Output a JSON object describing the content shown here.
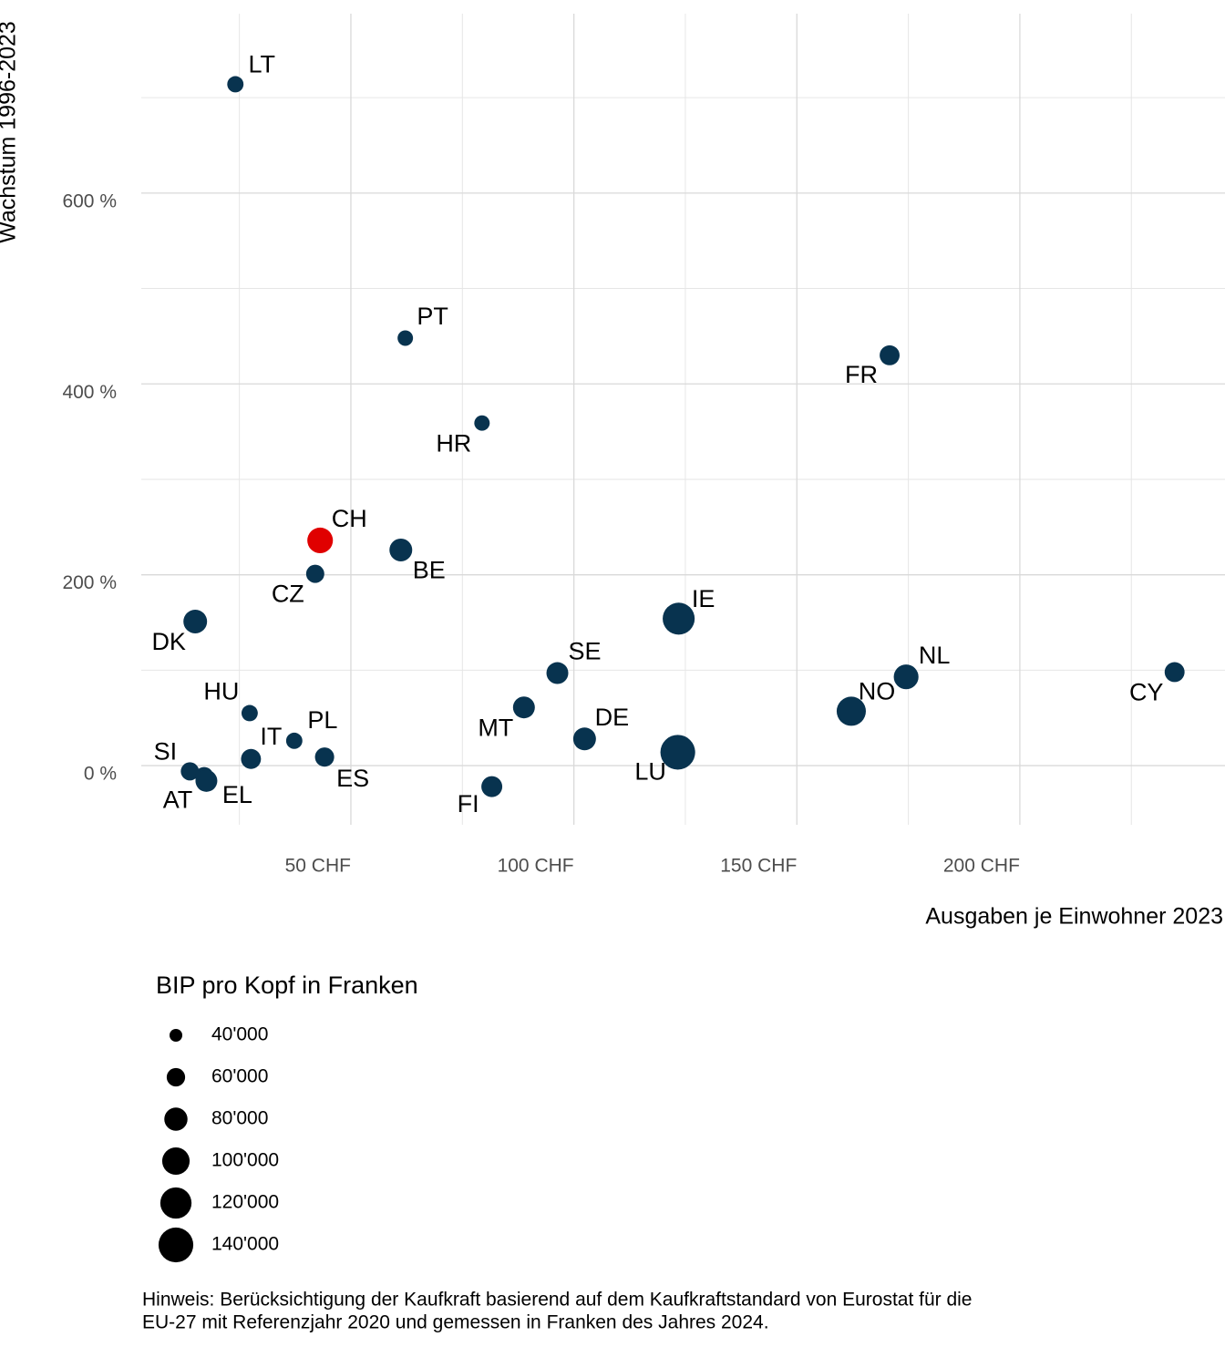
{
  "chart_data": {
    "type": "scatter",
    "x_label": "Ausgaben je Einwohner 2023",
    "y_label": "Wachstum 1996-2023",
    "size_legend_title": "BIP pro Kopf in Franken",
    "note": [
      "Hinweis: Berücksichtigung der Kaufkraft basierend auf dem Kaufkraftstandard von Eurostat für die",
      "EU-27 mit Referenzjahr 2020 und gemessen in Franken des Jahres 2024."
    ],
    "labels": [
      "LT",
      "PT",
      "FR",
      "HR",
      "CH",
      "BE",
      "CZ",
      "DK",
      "IE",
      "SE",
      "NL",
      "CY",
      "NO",
      "MT",
      "DE",
      "LU",
      "HU",
      "PL",
      "IT",
      "ES",
      "SI",
      "AT",
      "EL",
      "FI"
    ],
    "x": [
      24.1,
      62.2,
      170.8,
      79.4,
      43.1,
      61.2,
      42.0,
      15.1,
      123.5,
      96.3,
      174.5,
      234.7,
      162.2,
      88.8,
      102.4,
      123.3,
      27.3,
      37.3,
      27.6,
      44.1,
      13.9,
      17.1,
      17.6,
      81.6
    ],
    "y": [
      714,
      448,
      430,
      359,
      236,
      226,
      201,
      151,
      154,
      97,
      93,
      98,
      57,
      61,
      28,
      14,
      55,
      26,
      7,
      9,
      -6,
      -11,
      -16,
      -22
    ],
    "size": [
      52000,
      49000,
      66000,
      49000,
      91000,
      78000,
      59000,
      82000,
      124000,
      74000,
      87000,
      66000,
      109000,
      74000,
      78000,
      140000,
      52000,
      52000,
      66000,
      63000,
      59000,
      59000,
      74000,
      70000
    ],
    "colors": [
      "#08334f",
      "#08334f",
      "#08334f",
      "#08334f",
      "#e00000",
      "#08334f",
      "#08334f",
      "#08334f",
      "#08334f",
      "#08334f",
      "#08334f",
      "#08334f",
      "#08334f",
      "#08334f",
      "#08334f",
      "#08334f",
      "#08334f",
      "#08334f",
      "#08334f",
      "#08334f",
      "#08334f",
      "#08334f",
      "#08334f",
      "#08334f"
    ],
    "xlim": [
      3,
      246
    ],
    "ylim": [
      -62,
      788
    ],
    "xticks": [
      {
        "value": 50,
        "label": "50 CHF"
      },
      {
        "value": 100,
        "label": "100 CHF"
      },
      {
        "value": 150,
        "label": "150 CHF"
      },
      {
        "value": 200,
        "label": "200 CHF"
      }
    ],
    "yticks": [
      {
        "value": 0,
        "label": "0 %"
      },
      {
        "value": 200,
        "label": "200 %"
      },
      {
        "value": 400,
        "label": "400 %"
      },
      {
        "value": 600,
        "label": "600 %"
      }
    ],
    "xminor": [
      25,
      75,
      125,
      175,
      225
    ],
    "yminor": [
      100,
      300,
      500,
      700
    ],
    "grid": true,
    "size_legend": [
      {
        "value": 40000,
        "label": "40'000"
      },
      {
        "value": 60000,
        "label": "60'000"
      },
      {
        "value": 80000,
        "label": "80'000"
      },
      {
        "value": 100000,
        "label": "100'000"
      },
      {
        "value": 120000,
        "label": "120'000"
      },
      {
        "value": 140000,
        "label": "140'000"
      }
    ],
    "legend_color": "#000000"
  }
}
